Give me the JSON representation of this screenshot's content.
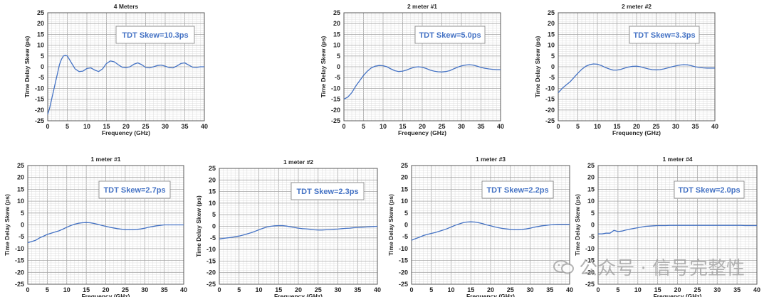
{
  "chart_data": [
    {
      "type": "line",
      "title": "4 Meters",
      "xlabel": "Frequency (GHz)",
      "ylabel": "Time Delay Skew (ps)",
      "xlim": [
        0,
        40
      ],
      "ylim": [
        -25,
        25
      ],
      "xticks": [
        0,
        5,
        10,
        15,
        20,
        25,
        30,
        35,
        40
      ],
      "yticks": [
        25,
        20,
        15,
        10,
        5,
        0,
        -5,
        -10,
        -15,
        -20,
        -25
      ],
      "grid": true,
      "annotation": "TDT Skew=10.3ps",
      "series": [
        {
          "color": "#4472C4",
          "x": [
            0,
            0.5,
            1,
            1.5,
            2,
            2.5,
            3,
            3.5,
            4,
            4.5,
            5,
            5.5,
            6,
            7,
            8,
            9,
            10,
            11,
            12,
            13,
            14,
            15,
            16,
            17,
            18,
            19,
            20,
            21,
            22,
            23,
            24,
            25,
            26,
            27,
            28,
            29,
            30,
            31,
            32,
            33,
            34,
            35,
            36,
            37,
            38,
            39,
            40
          ],
          "y": [
            -22,
            -19,
            -15,
            -11,
            -7,
            -3,
            1,
            3.5,
            5,
            5.3,
            5,
            3.5,
            2,
            -1,
            -2.2,
            -2,
            -0.8,
            -0.5,
            -1.5,
            -2.2,
            -1,
            1.5,
            2.7,
            2.3,
            1,
            -0.2,
            -0.4,
            0,
            1.2,
            1.8,
            1,
            -0.3,
            -0.5,
            0,
            0.6,
            0.8,
            0.3,
            -0.4,
            -0.5,
            0.4,
            1.5,
            1.8,
            0.8,
            -0.2,
            -0.3,
            0,
            0
          ]
        }
      ]
    },
    {
      "type": "line",
      "title": "2 meter #1",
      "xlabel": "Frequency (GHz)",
      "ylabel": "Time Delay Skew (ps)",
      "xlim": [
        0,
        40
      ],
      "ylim": [
        -25,
        25
      ],
      "xticks": [
        0,
        5,
        10,
        15,
        20,
        25,
        30,
        35,
        40
      ],
      "yticks": [
        25,
        20,
        15,
        10,
        5,
        0,
        -5,
        -10,
        -15,
        -20,
        -25
      ],
      "grid": true,
      "annotation": "TDT Skew=5.0ps",
      "series": [
        {
          "color": "#4472C4",
          "x": [
            0,
            0.5,
            1,
            2,
            3,
            4,
            5,
            6,
            7,
            8,
            9,
            10,
            11,
            12,
            13,
            14,
            15,
            16,
            17,
            18,
            19,
            20,
            21,
            22,
            23,
            24,
            25,
            26,
            27,
            28,
            29,
            30,
            31,
            32,
            33,
            34,
            35,
            36,
            37,
            38,
            39,
            40
          ],
          "y": [
            -15,
            -14.5,
            -14,
            -12,
            -9,
            -6.5,
            -4,
            -2,
            -0.5,
            0.3,
            0.6,
            0.5,
            0,
            -1,
            -1.8,
            -2.2,
            -2,
            -1.5,
            -0.8,
            -0.2,
            0,
            -0.2,
            -0.8,
            -1.5,
            -2,
            -2.3,
            -2.4,
            -2.2,
            -1.8,
            -1,
            -0.2,
            0.4,
            0.8,
            1,
            0.8,
            0.3,
            -0.3,
            -0.7,
            -1,
            -1.2,
            -1.3,
            -1.3
          ]
        }
      ]
    },
    {
      "type": "line",
      "title": "2 meter #2",
      "xlabel": "Frequency (GHz)",
      "ylabel": "Time Delay Skew (ps)",
      "xlim": [
        0,
        40
      ],
      "ylim": [
        -25,
        25
      ],
      "xticks": [
        0,
        5,
        10,
        15,
        20,
        25,
        30,
        35,
        40
      ],
      "yticks": [
        25,
        20,
        15,
        10,
        5,
        0,
        -5,
        -10,
        -15,
        -20,
        -25
      ],
      "grid": true,
      "annotation": "TDT Skew=3.3ps",
      "series": [
        {
          "color": "#4472C4",
          "x": [
            0,
            0.5,
            1,
            2,
            3,
            4,
            5,
            6,
            7,
            8,
            9,
            10,
            11,
            12,
            13,
            14,
            15,
            16,
            17,
            18,
            19,
            20,
            21,
            22,
            23,
            24,
            25,
            26,
            27,
            28,
            29,
            30,
            31,
            32,
            33,
            34,
            35,
            36,
            37,
            38,
            39,
            40
          ],
          "y": [
            -12,
            -11,
            -10,
            -8.5,
            -7,
            -5,
            -3,
            -1.2,
            0.2,
            1,
            1.3,
            1.2,
            0.6,
            -0.3,
            -1,
            -1.5,
            -1.5,
            -1.2,
            -0.6,
            -0.1,
            0.2,
            0.3,
            0,
            -0.5,
            -1,
            -1.3,
            -1.4,
            -1.3,
            -1,
            -0.5,
            0,
            0.4,
            0.8,
            1,
            0.9,
            0.5,
            0,
            -0.3,
            -0.5,
            -0.6,
            -0.6,
            -0.6
          ]
        }
      ]
    },
    {
      "type": "line",
      "title": "1 meter #1",
      "xlabel": "Frequency (GHz)",
      "ylabel": "Time Delay Skew (ps)",
      "xlim": [
        0,
        40
      ],
      "ylim": [
        -25,
        25
      ],
      "xticks": [
        0,
        5,
        10,
        15,
        20,
        25,
        30,
        35,
        40
      ],
      "yticks": [
        25,
        20,
        15,
        10,
        5,
        0,
        -5,
        -10,
        -15,
        -20,
        -25
      ],
      "grid": true,
      "annotation": "TDT Skew=2.7ps",
      "series": [
        {
          "color": "#4472C4",
          "x": [
            0,
            1,
            2,
            3,
            4,
            5,
            6,
            7,
            8,
            9,
            10,
            11,
            12,
            13,
            14,
            15,
            16,
            17,
            18,
            19,
            20,
            21,
            22,
            23,
            24,
            25,
            26,
            27,
            28,
            29,
            30,
            31,
            32,
            33,
            34,
            35,
            36,
            37,
            38,
            39,
            40
          ],
          "y": [
            -7.5,
            -7,
            -6.5,
            -5.5,
            -4.8,
            -4,
            -3.5,
            -3,
            -2.5,
            -1.8,
            -1,
            -0.3,
            0.3,
            0.7,
            0.9,
            1,
            0.9,
            0.6,
            0.2,
            -0.2,
            -0.6,
            -1,
            -1.3,
            -1.6,
            -1.8,
            -2,
            -2,
            -2,
            -1.9,
            -1.7,
            -1.4,
            -1,
            -0.7,
            -0.4,
            -0.2,
            0,
            0,
            0,
            0,
            0,
            0
          ]
        }
      ]
    },
    {
      "type": "line",
      "title": "1 meter #2",
      "xlabel": "Frequency (GHz)",
      "ylabel": "Time Delay Skew (ps)",
      "xlim": [
        0,
        40
      ],
      "ylim": [
        -25,
        25
      ],
      "xticks": [
        0,
        5,
        10,
        15,
        20,
        25,
        30,
        35,
        40
      ],
      "yticks": [
        25,
        20,
        15,
        10,
        5,
        0,
        -5,
        -10,
        -15,
        -20,
        -25
      ],
      "grid": true,
      "annotation": "TDT Skew=2.3ps",
      "series": [
        {
          "color": "#4472C4",
          "x": [
            0,
            1,
            2,
            3,
            4,
            5,
            6,
            7,
            8,
            9,
            10,
            11,
            12,
            13,
            14,
            15,
            16,
            17,
            18,
            19,
            20,
            21,
            22,
            23,
            24,
            25,
            26,
            27,
            28,
            29,
            30,
            31,
            32,
            33,
            34,
            35,
            36,
            37,
            38,
            39,
            40
          ],
          "y": [
            -5.5,
            -5.2,
            -5,
            -4.8,
            -4.5,
            -4.2,
            -3.8,
            -3.3,
            -2.8,
            -2.2,
            -1.5,
            -0.9,
            -0.3,
            0,
            0.2,
            0.3,
            0.3,
            0.1,
            -0.2,
            -0.5,
            -0.8,
            -1,
            -1.1,
            -1.3,
            -1.5,
            -1.6,
            -1.6,
            -1.5,
            -1.4,
            -1.3,
            -1.2,
            -1,
            -0.9,
            -0.8,
            -0.6,
            -0.5,
            -0.4,
            -0.3,
            -0.2,
            -0.1,
            0
          ]
        }
      ]
    },
    {
      "type": "line",
      "title": "1 meter #3",
      "xlabel": "Frequency (GHz)",
      "ylabel": "Time Delay Skew (ps)",
      "xlim": [
        0,
        40
      ],
      "ylim": [
        -25,
        25
      ],
      "xticks": [
        0,
        5,
        10,
        15,
        20,
        25,
        30,
        35,
        40
      ],
      "yticks": [
        25,
        20,
        15,
        10,
        5,
        0,
        -5,
        -10,
        -15,
        -20,
        -25
      ],
      "grid": true,
      "annotation": "TDT Skew=2.2ps",
      "series": [
        {
          "color": "#4472C4",
          "x": [
            0,
            1,
            2,
            3,
            4,
            5,
            6,
            7,
            8,
            9,
            10,
            11,
            12,
            13,
            14,
            15,
            16,
            17,
            18,
            19,
            20,
            21,
            22,
            23,
            24,
            25,
            26,
            27,
            28,
            29,
            30,
            31,
            32,
            33,
            34,
            35,
            36,
            37,
            38,
            39,
            40
          ],
          "y": [
            -6.5,
            -5.8,
            -5.2,
            -4.5,
            -4,
            -3.6,
            -3.2,
            -2.7,
            -2.2,
            -1.6,
            -0.9,
            -0.2,
            0.4,
            0.9,
            1.2,
            1.3,
            1.2,
            0.9,
            0.5,
            0,
            -0.4,
            -0.8,
            -1.2,
            -1.5,
            -1.7,
            -1.9,
            -2,
            -2,
            -1.9,
            -1.7,
            -1.4,
            -1,
            -0.7,
            -0.4,
            -0.2,
            0,
            0.1,
            0.2,
            0.2,
            0.2,
            0.2
          ]
        }
      ]
    },
    {
      "type": "line",
      "title": "1 meter #4",
      "xlabel": "Frequency (GHz)",
      "ylabel": "Time Delay Skew (ps)",
      "xlim": [
        0,
        40
      ],
      "ylim": [
        -25,
        25
      ],
      "xticks": [
        0,
        5,
        10,
        15,
        20,
        25,
        30,
        35,
        40
      ],
      "yticks": [
        25,
        20,
        15,
        10,
        5,
        0,
        -5,
        -10,
        -15,
        -20,
        -25
      ],
      "grid": true,
      "annotation": "TDT Skew=2.0ps",
      "series": [
        {
          "color": "#4472C4",
          "x": [
            0,
            1,
            2,
            3,
            4,
            5,
            6,
            7,
            8,
            9,
            10,
            11,
            12,
            13,
            14,
            15,
            16,
            17,
            18,
            19,
            20,
            21,
            22,
            23,
            24,
            25,
            26,
            27,
            28,
            29,
            30,
            31,
            32,
            33,
            34,
            35,
            36,
            37,
            38,
            39,
            40
          ],
          "y": [
            -3.8,
            -3.8,
            -3.5,
            -3.5,
            -2.3,
            -2.8,
            -2.6,
            -2.2,
            -1.8,
            -1.5,
            -1.2,
            -0.9,
            -0.6,
            -0.5,
            -0.4,
            -0.3,
            -0.3,
            -0.3,
            -0.2,
            -0.2,
            -0.2,
            -0.2,
            -0.2,
            -0.2,
            -0.2,
            -0.2,
            -0.2,
            -0.2,
            -0.2,
            -0.2,
            -0.2,
            -0.2,
            -0.2,
            -0.2,
            -0.2,
            -0.2,
            -0.2,
            -0.3,
            -0.3,
            -0.3,
            -0.3
          ]
        }
      ]
    }
  ],
  "watermark": {
    "text": "公众号 · 信号完整性"
  }
}
